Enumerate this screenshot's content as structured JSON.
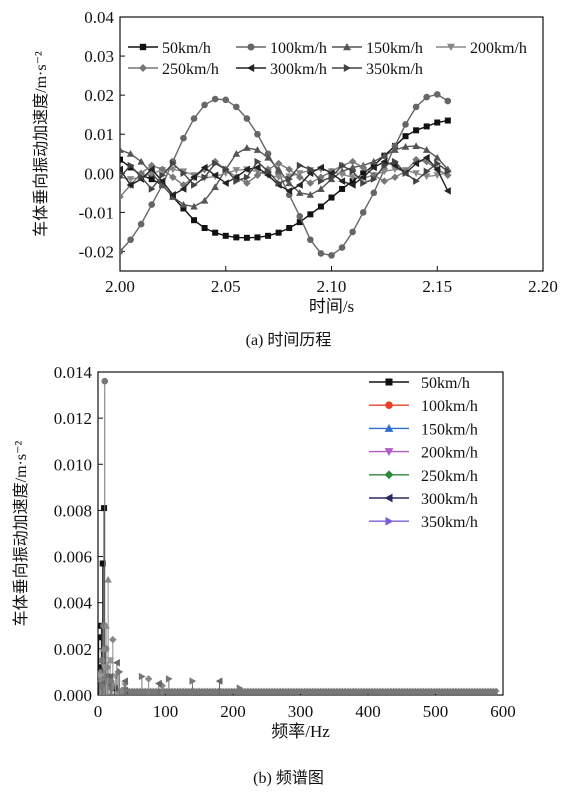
{
  "chart_data": [
    {
      "type": "line",
      "caption": "(a) 时间历程",
      "xlabel": "时间/s",
      "ylabel": "车体垂向振动加速度/m·s⁻²",
      "xlim": [
        2.0,
        2.2
      ],
      "ylim": [
        -0.025,
        0.04
      ],
      "xticks": [
        "2.00",
        "2.05",
        "2.10",
        "2.15",
        "2.20"
      ],
      "yticks": [
        "-0.02",
        "-0.01",
        "0.00",
        "0.01",
        "0.02",
        "0.03",
        "0.04"
      ],
      "legend_position": "top",
      "x": [
        2.0,
        2.005,
        2.01,
        2.015,
        2.02,
        2.025,
        2.03,
        2.035,
        2.04,
        2.045,
        2.05,
        2.055,
        2.06,
        2.065,
        2.07,
        2.075,
        2.08,
        2.085,
        2.09,
        2.095,
        2.1,
        2.105,
        2.11,
        2.115,
        2.12,
        2.125,
        2.13,
        2.135,
        2.14,
        2.145,
        2.15,
        2.155
      ],
      "series": [
        {
          "name": "50km/h",
          "marker": "square",
          "color": "#111111",
          "values": [
            0.0035,
            0.0015,
            -0.0005,
            -0.0015,
            -0.003,
            -0.006,
            -0.009,
            -0.012,
            -0.014,
            -0.0152,
            -0.016,
            -0.0164,
            -0.0165,
            -0.0164,
            -0.016,
            -0.0152,
            -0.014,
            -0.0125,
            -0.0105,
            -0.0085,
            -0.0062,
            -0.004,
            -0.002,
            0.0,
            0.002,
            0.0045,
            0.007,
            0.0095,
            0.011,
            0.012,
            0.013,
            0.0135
          ]
        },
        {
          "name": "100km/h",
          "marker": "circle",
          "color": "#666666",
          "values": [
            -0.02,
            -0.017,
            -0.013,
            -0.008,
            -0.003,
            0.003,
            0.009,
            0.014,
            0.0175,
            0.019,
            0.0188,
            0.017,
            0.014,
            0.01,
            0.005,
            0.0,
            -0.0055,
            -0.011,
            -0.017,
            -0.0205,
            -0.021,
            -0.019,
            -0.015,
            -0.01,
            -0.005,
            0.001,
            0.007,
            0.0125,
            0.017,
            0.0195,
            0.0202,
            0.0185
          ]
        },
        {
          "name": "150km/h",
          "marker": "triangle-up",
          "color": "#555555",
          "values": [
            0.006,
            0.005,
            0.003,
            0.0,
            -0.003,
            -0.006,
            -0.008,
            -0.0085,
            -0.007,
            -0.0035,
            0.001,
            0.005,
            0.0065,
            0.006,
            0.004,
            0.001,
            -0.0025,
            -0.005,
            -0.0055,
            -0.004,
            -0.0015,
            0.0005,
            0.0015,
            0.002,
            0.003,
            0.0045,
            0.006,
            0.0068,
            0.007,
            0.006,
            0.004,
            0.001
          ]
        },
        {
          "name": "200km/h",
          "marker": "triangle-down",
          "color": "#888888",
          "values": [
            -0.001,
            -0.0015,
            -0.001,
            0.0,
            0.0008,
            0.001,
            0.0005,
            -0.0005,
            -0.0012,
            -0.0008,
            0.0,
            0.0008,
            0.001,
            0.0005,
            -0.0005,
            -0.001,
            -0.0008,
            0.0,
            0.0008,
            0.001,
            0.0005,
            -0.0003,
            -0.001,
            -0.0012,
            -0.0005,
            0.0005,
            0.001,
            0.0008,
            0.0,
            -0.0008,
            -0.0005,
            0.0002
          ]
        },
        {
          "name": "250km/h",
          "marker": "diamond",
          "color": "#777777",
          "values": [
            -0.006,
            -0.003,
            0.0,
            0.002,
            0.001,
            -0.001,
            -0.003,
            -0.001,
            0.001,
            0.003,
            0.001,
            -0.001,
            -0.0025,
            -0.0005,
            0.001,
            0.0025,
            0.001,
            -0.001,
            -0.0025,
            -0.001,
            0.0005,
            0.002,
            0.003,
            0.0015,
            -0.0005,
            -0.002,
            -0.001,
            0.0005,
            0.0035,
            0.003,
            0.001,
            -0.0005
          ]
        },
        {
          "name": "300km/h",
          "marker": "triangle-left",
          "color": "#222222",
          "values": [
            0.001,
            -0.003,
            -0.0015,
            0.001,
            -0.002,
            -0.0055,
            -0.004,
            -0.001,
            0.0015,
            -0.0005,
            -0.0025,
            -0.001,
            0.001,
            0.0015,
            -0.0005,
            -0.003,
            -0.0045,
            -0.003,
            0.0,
            0.0015,
            0.0,
            -0.002,
            -0.003,
            -0.001,
            0.0015,
            0.003,
            0.002,
            0.0,
            0.0025,
            0.004,
            0.001,
            -0.0045
          ]
        },
        {
          "name": "350km/h",
          "marker": "triangle-right",
          "color": "#444444",
          "values": [
            -0.001,
            0.002,
            -0.001,
            -0.004,
            -0.0005,
            0.0025,
            0.0,
            -0.003,
            -0.001,
            0.0025,
            0.001,
            -0.002,
            -0.001,
            0.003,
            0.0005,
            -0.0025,
            -0.0015,
            0.002,
            0.001,
            -0.002,
            -0.001,
            0.002,
            0.0005,
            -0.0025,
            -0.0015,
            0.002,
            0.003,
            0.0,
            -0.002,
            0.0005,
            0.0025,
            0.0005
          ]
        }
      ]
    },
    {
      "type": "line",
      "caption": "(b) 频谱图",
      "xlabel": "频率/Hz",
      "ylabel": "车体垂向振动加速度/m·s⁻²",
      "xlim": [
        0,
        600
      ],
      "ylim": [
        0,
        0.014
      ],
      "xticks": [
        "0",
        "100",
        "200",
        "300",
        "400",
        "500",
        "600"
      ],
      "yticks": [
        "0.000",
        "0.002",
        "0.004",
        "0.006",
        "0.008",
        "0.010",
        "0.012",
        "0.014"
      ],
      "legend_position": "top-right",
      "series": [
        {
          "name": "50km/h",
          "marker": "square",
          "color": "#111111",
          "points": [
            [
              1,
              0.0025
            ],
            [
              3,
              0.0012
            ],
            [
              5,
              0.003
            ],
            [
              7,
              0.0057
            ],
            [
              9,
              0.0081
            ],
            [
              11,
              0.002
            ],
            [
              14,
              0.0008
            ],
            [
              18,
              0.0005
            ],
            [
              25,
              0.0003
            ],
            [
              40,
              0.0002
            ]
          ]
        },
        {
          "name": "100km/h",
          "marker": "circle",
          "color": "#777777",
          "points": [
            [
              2,
              0.0008
            ],
            [
              6,
              0.0015
            ],
            [
              8,
              0.003
            ],
            [
              10,
              0.0136
            ],
            [
              12,
              0.002
            ],
            [
              15,
              0.0006
            ],
            [
              20,
              0.0003
            ],
            [
              40,
              0.0002
            ]
          ]
        },
        {
          "name": "150km/h",
          "marker": "triangle-up",
          "color": "#888888",
          "points": [
            [
              3,
              0.001
            ],
            [
              8,
              0.002
            ],
            [
              12,
              0.003
            ],
            [
              15,
              0.005
            ],
            [
              18,
              0.0015
            ],
            [
              22,
              0.0005
            ],
            [
              35,
              0.0002
            ]
          ]
        },
        {
          "name": "200km/h",
          "marker": "triangle-down",
          "color": "#999999",
          "points": [
            [
              4,
              0.0008
            ],
            [
              10,
              0.0012
            ],
            [
              18,
              0.0015
            ],
            [
              26,
              0.0008
            ],
            [
              40,
              0.0004
            ]
          ]
        },
        {
          "name": "250km/h",
          "marker": "diamond",
          "color": "#888888",
          "points": [
            [
              5,
              0.0006
            ],
            [
              14,
              0.0012
            ],
            [
              22,
              0.0024
            ],
            [
              30,
              0.001
            ],
            [
              75,
              0.0007
            ],
            [
              95,
              0.0004
            ]
          ]
        },
        {
          "name": "300km/h",
          "marker": "triangle-left",
          "color": "#666666",
          "points": [
            [
              6,
              0.0005
            ],
            [
              18,
              0.0008
            ],
            [
              28,
              0.0014
            ],
            [
              40,
              0.0006
            ],
            [
              90,
              0.0005
            ],
            [
              180,
              0.0006
            ]
          ]
        },
        {
          "name": "350km/h",
          "marker": "triangle-right",
          "color": "#777777",
          "points": [
            [
              7,
              0.0004
            ],
            [
              20,
              0.0006
            ],
            [
              32,
              0.001
            ],
            [
              65,
              0.0008
            ],
            [
              105,
              0.0007
            ],
            [
              140,
              0.0006
            ],
            [
              210,
              0.0003
            ]
          ]
        }
      ],
      "legend_colors": [
        "#111111",
        "#e8402a",
        "#2f6fd1",
        "#b05cc4",
        "#2c8a3a",
        "#2a2a60",
        "#7b5cd6"
      ]
    }
  ]
}
